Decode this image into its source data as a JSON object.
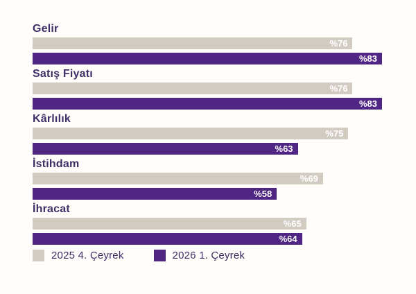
{
  "colors": {
    "background": "#fffefb",
    "series_2025_q4": "#d1cbc2",
    "series_2026_q1": "#4f2683",
    "category_text": "#3f2d66",
    "value_text": "#ffffff",
    "legend_text": "#3f2d66"
  },
  "chart_data": {
    "type": "bar",
    "orientation": "horizontal",
    "title": "",
    "xlabel": "",
    "ylabel": "",
    "grid": false,
    "legend_position": "bottom",
    "xlim": [
      0,
      83
    ],
    "value_prefix": "%",
    "categories": [
      "Gelir",
      "Satış Fiyatı",
      "Kârlılık",
      "İstihdam",
      "İhracat"
    ],
    "series": [
      {
        "name": "2025 4. Çeyrek",
        "color": "#d1cbc2",
        "values": [
          76,
          76,
          75,
          69,
          65
        ],
        "labels": [
          "%76",
          "%76",
          "%75",
          "%69",
          "%65"
        ]
      },
      {
        "name": "2026 1. Çeyrek",
        "color": "#4f2683",
        "values": [
          83,
          83,
          63,
          58,
          64
        ],
        "labels": [
          "%83",
          "%83",
          "%63",
          "%58",
          "%64"
        ]
      }
    ]
  },
  "legend": {
    "items": [
      {
        "label": "2025 4. Çeyrek",
        "color": "#d1cbc2"
      },
      {
        "label": "2026 1. Çeyrek",
        "color": "#4f2683"
      }
    ]
  }
}
